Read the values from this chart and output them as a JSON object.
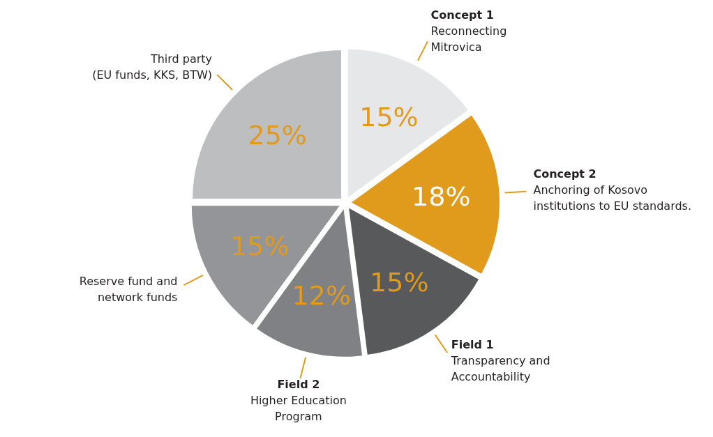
{
  "chart_data": {
    "type": "pie",
    "categories": [
      "Concept 1\nReconnecting\nMitrovica",
      "Concept 2\nAnchoring of Kosovo\ninstitutions to EU standards.",
      "Field 1\nTransparency and\nAccountability",
      "Field 2\nHigher Education\nProgram",
      "Reserve fund and\nnetwork funds",
      "Third party\n(EU funds, KKS, BTW)"
    ],
    "values": [
      15,
      18,
      15,
      12,
      15,
      25
    ],
    "value_labels": [
      "15%",
      "18%",
      "15%",
      "12%",
      "15%",
      "25%"
    ],
    "colors": [
      "#e6e7e8",
      "#e09a1c",
      "#58595b",
      "#808184",
      "#939598",
      "#bcbec0"
    ],
    "legend": false
  }
}
